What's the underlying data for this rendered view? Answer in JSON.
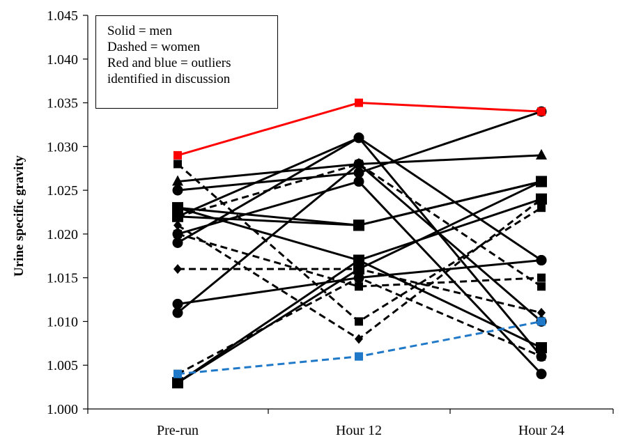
{
  "chart_data": {
    "type": "line",
    "ylabel": "Urine specific gravity",
    "xlabel": "",
    "categories": [
      "Pre-run",
      "Hour 12",
      "Hour 24"
    ],
    "ylim": [
      1.0,
      1.045
    ],
    "yticks": [
      "1.000",
      "1.005",
      "1.010",
      "1.015",
      "1.020",
      "1.025",
      "1.030",
      "1.035",
      "1.040",
      "1.045"
    ],
    "grid": false,
    "legend_text": [
      "Solid = men",
      "Dashed = women",
      "Red and blue = outliers",
      "identified in discussion"
    ],
    "colors": {
      "default": "#000000",
      "red_outlier": "#ff0000",
      "blue_outlier": "#1f78c8"
    },
    "series": [
      {
        "values": [
          1.029,
          1.035,
          1.034
        ],
        "color": "red",
        "style": "solid",
        "marker": "square-small"
      },
      {
        "values": [
          1.004,
          1.006,
          1.01
        ],
        "color": "blue",
        "style": "dashed",
        "marker": "square-small"
      },
      {
        "values": [
          1.026,
          1.028,
          1.029
        ],
        "color": "black",
        "style": "solid",
        "marker": "triangle"
      },
      {
        "values": [
          1.025,
          1.027,
          1.034
        ],
        "color": "black",
        "style": "solid",
        "marker": "circle"
      },
      {
        "values": [
          1.023,
          1.021,
          1.026
        ],
        "color": "black",
        "style": "solid",
        "marker": "square"
      },
      {
        "values": [
          1.022,
          1.021,
          1.026
        ],
        "color": "black",
        "style": "solid",
        "marker": "square"
      },
      {
        "values": [
          1.022,
          1.031,
          1.017
        ],
        "color": "black",
        "style": "solid",
        "marker": "circle"
      },
      {
        "values": [
          1.023,
          1.017,
          1.024
        ],
        "color": "black",
        "style": "solid",
        "marker": "square"
      },
      {
        "values": [
          1.02,
          1.026,
          1.004
        ],
        "color": "black",
        "style": "solid",
        "marker": "circle"
      },
      {
        "values": [
          1.019,
          1.031,
          1.006
        ],
        "color": "black",
        "style": "solid",
        "marker": "circle"
      },
      {
        "values": [
          1.012,
          1.015,
          1.017
        ],
        "color": "black",
        "style": "solid",
        "marker": "circle"
      },
      {
        "values": [
          1.011,
          1.028,
          1.01
        ],
        "color": "black",
        "style": "solid",
        "marker": "circle"
      },
      {
        "values": [
          1.003,
          1.016,
          1.026
        ],
        "color": "black",
        "style": "solid",
        "marker": "square"
      },
      {
        "values": [
          1.003,
          1.017,
          1.007
        ],
        "color": "black",
        "style": "solid",
        "marker": "square"
      },
      {
        "values": [
          1.028,
          1.01,
          1.023
        ],
        "color": "black",
        "style": "dashed",
        "marker": "square-small"
      },
      {
        "values": [
          1.022,
          1.028,
          1.014
        ],
        "color": "black",
        "style": "dashed",
        "marker": "square-small"
      },
      {
        "values": [
          1.021,
          1.008,
          1.024
        ],
        "color": "black",
        "style": "dashed",
        "marker": "diamond"
      },
      {
        "values": [
          1.02,
          1.014,
          1.015
        ],
        "color": "black",
        "style": "dashed",
        "marker": "square-small"
      },
      {
        "values": [
          1.016,
          1.016,
          1.011
        ],
        "color": "black",
        "style": "dashed",
        "marker": "diamond"
      },
      {
        "values": [
          1.004,
          1.015,
          1.006
        ],
        "color": "black",
        "style": "dashed",
        "marker": "square-small"
      }
    ]
  }
}
